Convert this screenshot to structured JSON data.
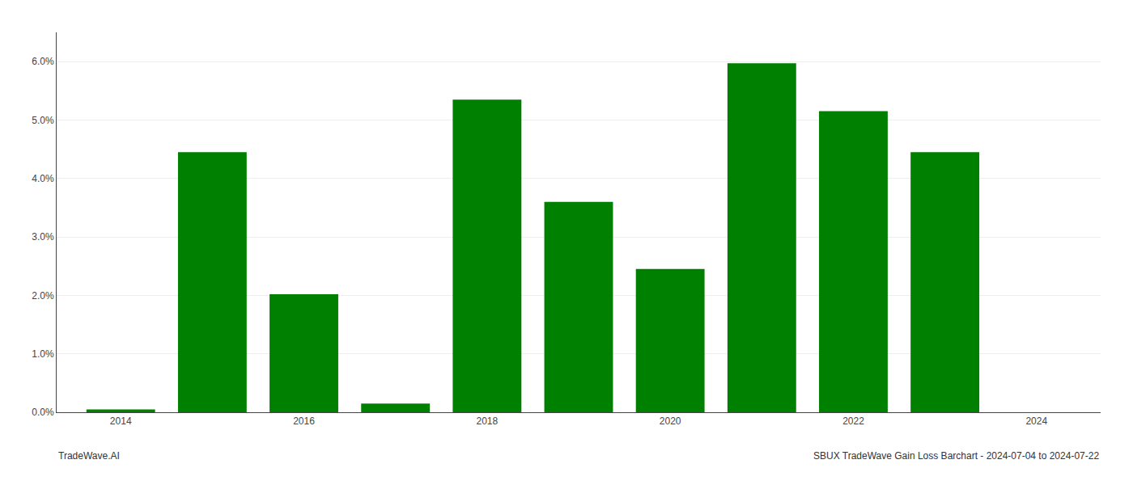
{
  "chart_data": {
    "type": "bar",
    "x": [
      2014,
      2015,
      2016,
      2017,
      2018,
      2019,
      2020,
      2021,
      2022,
      2023,
      2024
    ],
    "values": [
      0.0005,
      0.0445,
      0.0202,
      0.0015,
      0.0535,
      0.036,
      0.0245,
      0.0597,
      0.0515,
      0.0445,
      null
    ],
    "color": "#008000",
    "xlim": [
      2013.3,
      2024.7
    ],
    "xticks": [
      2014,
      2016,
      2018,
      2020,
      2022,
      2024
    ],
    "ylim": [
      0,
      0.065
    ],
    "yticks": [
      {
        "value": 0.0,
        "label": "0.0%"
      },
      {
        "value": 0.01,
        "label": "1.0%"
      },
      {
        "value": 0.02,
        "label": "2.0%"
      },
      {
        "value": 0.03,
        "label": "3.0%"
      },
      {
        "value": 0.04,
        "label": "4.0%"
      },
      {
        "value": 0.05,
        "label": "5.0%"
      },
      {
        "value": 0.06,
        "label": "6.0%"
      }
    ],
    "grid": "y",
    "annotations": [
      "TradeWave.AI",
      "SBUX TradeWave Gain Loss Barchart - 2024-07-04 to 2024-07-22"
    ]
  }
}
